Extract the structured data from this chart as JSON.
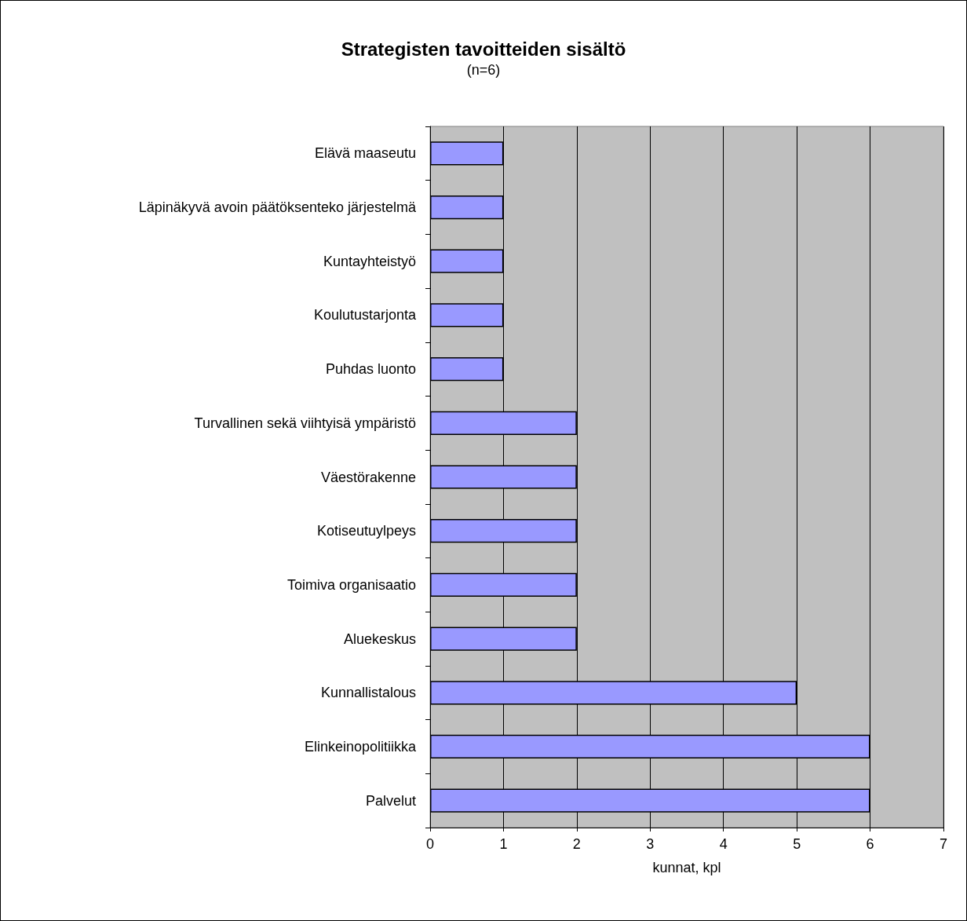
{
  "chart_data": {
    "type": "bar",
    "orientation": "horizontal",
    "title": "Strategisten tavoitteiden sisältö",
    "subtitle": "(n=6)",
    "xlabel": "kunnat, kpl",
    "categories": [
      "Elävä maaseutu",
      "Läpinäkyvä avoin päätöksenteko järjestelmä",
      "Kuntayhteistyö",
      "Koulutustarjonta",
      "Puhdas luonto",
      "Turvallinen sekä viihtyisä ympäristö",
      "Väestörakenne",
      "Kotiseutuylpeys",
      "Toimiva organisaatio",
      "Aluekeskus",
      "Kunnallistalous",
      "Elinkeinopolitiikka",
      "Palvelut"
    ],
    "values": [
      1,
      1,
      1,
      1,
      1,
      2,
      2,
      2,
      2,
      2,
      5,
      6,
      6
    ],
    "color": "#9999ff",
    "xlim": [
      0,
      7
    ],
    "xticks": [
      0,
      1,
      2,
      3,
      4,
      5,
      6,
      7
    ],
    "grid": "x"
  }
}
